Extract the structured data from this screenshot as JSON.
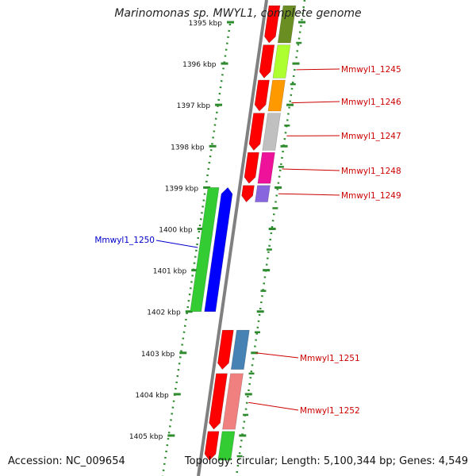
{
  "title": "Marinomonas sp. MWYL1, complete genome",
  "footer": {
    "accession": "Accession: NC_009654",
    "info": "Topology: circular; Length: 5,100,344 bp; Genes: 4,549"
  },
  "ticks": [
    {
      "label": "1395 kbp",
      "kbp": 1395
    },
    {
      "label": "1396 kbp",
      "kbp": 1396
    },
    {
      "label": "1397 kbp",
      "kbp": 1397
    },
    {
      "label": "1398 kbp",
      "kbp": 1398
    },
    {
      "label": "1399 kbp",
      "kbp": 1399
    },
    {
      "label": "1400 kbp",
      "kbp": 1400
    },
    {
      "label": "1401 kbp",
      "kbp": 1401
    },
    {
      "label": "1402 kbp",
      "kbp": 1402
    },
    {
      "label": "1403 kbp",
      "kbp": 1403
    },
    {
      "label": "1404 kbp",
      "kbp": 1404
    },
    {
      "label": "1405 kbp",
      "kbp": 1405
    }
  ],
  "genes_forward": [
    {
      "start": 1394.6,
      "end": 1395.5,
      "strand": "reverse",
      "color": "#ff0000",
      "cog_color": "#6b8e23"
    },
    {
      "start": 1395.55,
      "end": 1396.35,
      "strand": "reverse",
      "color": "#ff0000",
      "cog_color": "#adff2f"
    },
    {
      "start": 1396.4,
      "end": 1397.15,
      "strand": "reverse",
      "color": "#ff0000",
      "cog_color": "#ff9900"
    },
    {
      "start": 1397.2,
      "end": 1398.1,
      "strand": "reverse",
      "color": "#ff0000",
      "cog_color": "#c0c0c0"
    },
    {
      "start": 1398.15,
      "end": 1398.9,
      "strand": "reverse",
      "color": "#ff0000",
      "cog_color": "#ee1199"
    },
    {
      "start": 1398.95,
      "end": 1399.35,
      "strand": "reverse",
      "color": "#ff0000",
      "cog_color": "#8866dd"
    }
  ],
  "genes_reverse": [
    {
      "start": 1399.0,
      "end": 1402.0,
      "strand": "forward",
      "color": "#0000ff",
      "cog_color": "#33cc33"
    }
  ],
  "genes_lower": [
    {
      "start": 1402.45,
      "end": 1403.4,
      "strand": "reverse",
      "color": "#ff0000",
      "cog_color": "#4682b4"
    },
    {
      "start": 1403.5,
      "end": 1404.85,
      "strand": "reverse",
      "color": "#ff0000",
      "cog_color": "#f08080"
    },
    {
      "start": 1404.9,
      "end": 1405.6,
      "strand": "reverse",
      "color": "#ff0000",
      "cog_color": "#33cc33"
    }
  ],
  "labels_right": [
    {
      "text": "Mmwyl1_1245",
      "color": "#cc0000"
    },
    {
      "text": "Mmwyl1_1246",
      "color": "#cc0000"
    },
    {
      "text": "Mmwyl1_1247",
      "color": "#cc0000"
    },
    {
      "text": "Mmwyl1_1248",
      "color": "#cc0000"
    },
    {
      "text": "Mmwyl1_1249",
      "color": "#cc0000"
    },
    {
      "text": "Mmwyl1_1251",
      "color": "#cc0000"
    },
    {
      "text": "Mmwyl1_1252",
      "color": "#cc0000"
    }
  ],
  "labels_left": [
    {
      "text": "Mmwyl1_1250",
      "color": "#0000cc"
    }
  ]
}
